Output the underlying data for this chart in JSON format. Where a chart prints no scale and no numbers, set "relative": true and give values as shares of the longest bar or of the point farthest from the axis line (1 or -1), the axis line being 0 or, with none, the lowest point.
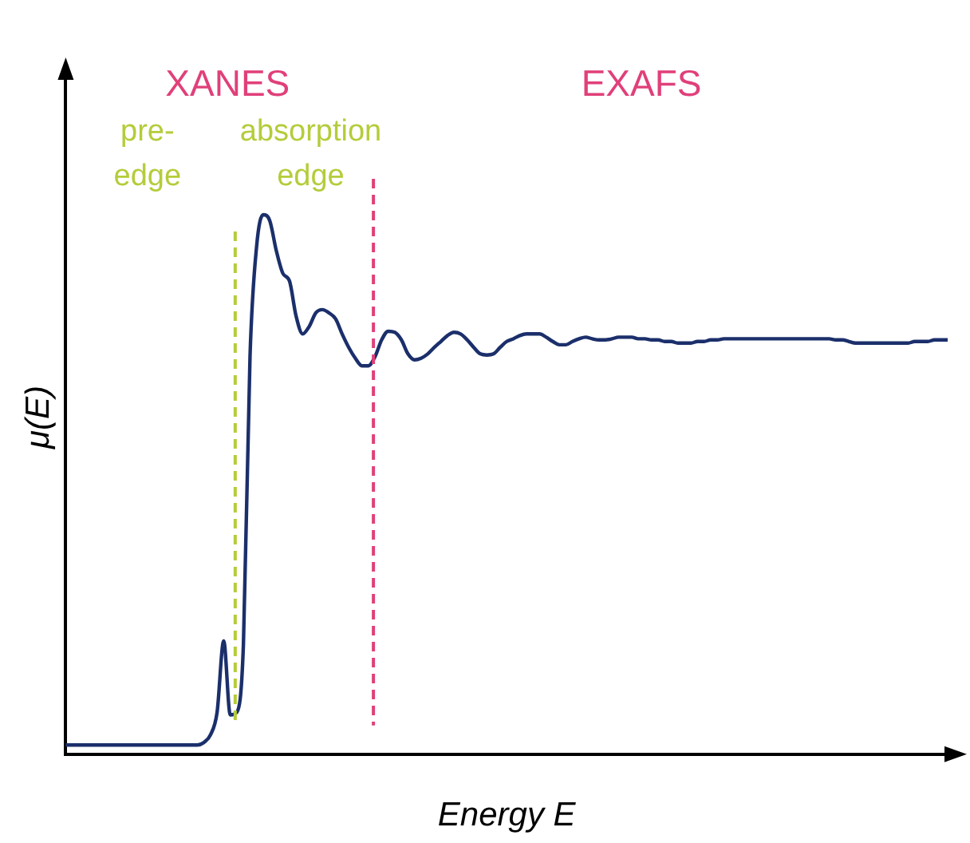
{
  "chart_data": {
    "type": "line",
    "relative": true,
    "xlabel": "Energy E",
    "ylabel": "μ(E)",
    "grid": false,
    "legend": false,
    "marker": "none",
    "line_style": "solid",
    "categories": [
      null,
      null,
      null,
      null,
      null,
      null,
      null,
      null,
      null,
      null,
      null,
      null,
      null,
      null,
      null,
      null,
      null,
      null,
      null,
      null,
      null,
      null,
      null,
      null,
      null,
      null,
      null,
      null,
      null,
      null,
      null,
      null,
      null,
      null,
      null,
      null,
      null,
      null,
      null,
      null,
      null,
      null,
      null,
      null,
      null,
      null,
      null,
      null,
      null,
      null,
      null,
      null,
      null,
      null,
      null,
      null,
      null,
      null,
      null,
      null,
      null,
      null,
      null,
      null,
      null,
      null,
      null,
      null,
      null,
      null,
      null,
      null,
      null,
      null,
      null,
      null,
      null,
      null,
      null,
      null,
      null,
      null,
      null,
      null,
      null,
      null,
      null,
      null,
      null,
      null,
      null,
      null,
      null,
      null,
      null,
      null,
      null,
      null,
      null,
      null,
      null,
      null,
      null,
      null,
      null,
      null,
      null,
      null,
      null,
      null,
      null,
      null,
      null,
      null,
      null,
      null,
      null,
      null,
      null,
      null,
      null,
      null,
      null,
      null,
      null,
      null,
      null,
      null,
      null,
      null,
      null,
      null,
      null,
      null,
      null
    ],
    "series": [
      {
        "color": "#1b2f6b",
        "values": [
          0.017,
          0.017,
          0.017,
          0.017,
          0.017,
          0.017,
          0.017,
          0.017,
          0.017,
          0.017,
          0.017,
          0.017,
          0.017,
          0.017,
          0.017,
          0.017,
          0.017,
          0.017,
          0.017,
          0.017,
          0.017,
          0.022,
          0.036,
          0.078,
          0.21,
          0.073,
          0.078,
          0.204,
          0.737,
          0.941,
          1,
          0.989,
          0.933,
          0.891,
          0.877,
          0.812,
          0.779,
          0.793,
          0.818,
          0.824,
          0.818,
          0.807,
          0.779,
          0.754,
          0.734,
          0.72,
          0.72,
          0.737,
          0.768,
          0.784,
          0.782,
          0.768,
          0.742,
          0.731,
          0.734,
          0.742,
          0.754,
          0.765,
          0.776,
          0.782,
          0.779,
          0.768,
          0.754,
          0.742,
          0.74,
          0.742,
          0.754,
          0.765,
          0.77,
          0.776,
          0.779,
          0.779,
          0.779,
          0.773,
          0.765,
          0.759,
          0.759,
          0.765,
          0.77,
          0.773,
          0.77,
          0.768,
          0.768,
          0.77,
          0.773,
          0.773,
          0.773,
          0.77,
          0.77,
          0.768,
          0.768,
          0.765,
          0.765,
          0.762,
          0.762,
          0.762,
          0.765,
          0.765,
          0.768,
          0.768,
          0.77,
          0.77,
          0.77,
          0.77,
          0.77,
          0.77,
          0.77,
          0.77,
          0.77,
          0.77,
          0.77,
          0.77,
          0.77,
          0.77,
          0.77,
          0.77,
          0.77,
          0.768,
          0.768,
          0.765,
          0.762,
          0.762,
          0.762,
          0.762,
          0.762,
          0.762,
          0.762,
          0.762,
          0.762,
          0.765,
          0.765,
          0.765,
          0.768,
          0.768,
          0.768
        ]
      }
    ],
    "annotations": [
      "XANES",
      "EXAFS",
      "pre-\nedge",
      "absorption\nedge"
    ]
  }
}
